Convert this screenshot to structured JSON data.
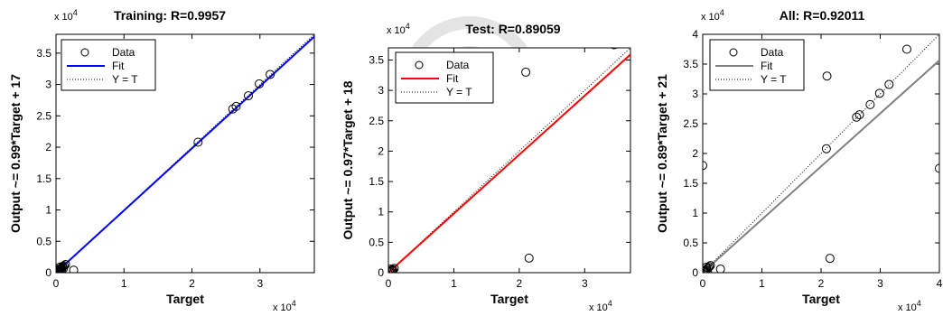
{
  "chart_data": [
    {
      "type": "scatter",
      "title": "Training: R=0.9957",
      "xlabel": "Target",
      "ylabel": "Output ~= 0.99*Target + 17",
      "exponent_label": "x 10",
      "exponent_power": "4",
      "xlim": [
        0,
        38000
      ],
      "ylim": [
        0,
        38000
      ],
      "xticks": [
        0,
        10000,
        20000,
        30000
      ],
      "xtick_labels": [
        "0",
        "1",
        "2",
        "3"
      ],
      "yticks": [
        0,
        5000,
        10000,
        15000,
        20000,
        25000,
        30000,
        35000
      ],
      "ytick_labels": [
        "0",
        "0.5",
        "1",
        "1.5",
        "2",
        "2.5",
        "3",
        "3.5"
      ],
      "fit": {
        "slope": 0.99,
        "intercept": 17,
        "color": "#0000ff"
      },
      "legend": [
        "Data",
        "Fit",
        "Y = T"
      ],
      "legend_placement": "top-left",
      "series": [
        {
          "name": "Data",
          "x": [
            100,
            200,
            300,
            400,
            500,
            600,
            700,
            800,
            900,
            1000,
            1200,
            1400,
            300,
            500,
            800,
            1100,
            600,
            2600,
            20900,
            26000,
            26500,
            28300,
            29900,
            31500
          ],
          "y": [
            100,
            150,
            350,
            300,
            450,
            500,
            650,
            700,
            900,
            1000,
            1100,
            1300,
            500,
            200,
            400,
            700,
            900,
            400,
            20800,
            26100,
            26500,
            28200,
            30100,
            31600
          ]
        }
      ]
    },
    {
      "type": "scatter",
      "title": "Test: R=0.89059",
      "xlabel": "Target",
      "ylabel": "Output ~= 0.97*Target + 18",
      "exponent_label": "x 10",
      "exponent_power": "4",
      "xlim": [
        0,
        37000
      ],
      "ylim": [
        0,
        37000
      ],
      "xticks": [
        0,
        10000,
        20000,
        30000
      ],
      "xtick_labels": [
        "0",
        "1",
        "2",
        "3"
      ],
      "yticks": [
        0,
        5000,
        10000,
        15000,
        20000,
        25000,
        30000,
        35000
      ],
      "ytick_labels": [
        "0",
        "0.5",
        "1",
        "1.5",
        "2",
        "2.5",
        "3",
        "3.5"
      ],
      "fit": {
        "slope": 0.97,
        "intercept": 18,
        "color": "#ff0000"
      },
      "legend": [
        "Data",
        "Fit",
        "Y = T"
      ],
      "legend_placement": "top-left",
      "series": [
        {
          "name": "Data",
          "x": [
            100,
            200,
            300,
            500,
            700,
            900,
            400,
            600,
            21000,
            21500,
            34500
          ],
          "y": [
            100,
            300,
            200,
            400,
            500,
            700,
            600,
            300,
            33000,
            2400,
            37500
          ]
        }
      ]
    },
    {
      "type": "scatter",
      "title": "All: R=0.92011",
      "xlabel": "Target",
      "ylabel": "Output ~= 0.89*Target + 21",
      "exponent_label": "x 10",
      "exponent_power": "4",
      "xlim": [
        0,
        40000
      ],
      "ylim": [
        0,
        40000
      ],
      "xticks": [
        0,
        10000,
        20000,
        30000,
        40000
      ],
      "xtick_labels": [
        "0",
        "1",
        "2",
        "3",
        "4"
      ],
      "yticks": [
        0,
        5000,
        10000,
        15000,
        20000,
        25000,
        30000,
        35000,
        40000
      ],
      "ytick_labels": [
        "0",
        "0.5",
        "1",
        "1.5",
        "2",
        "2.5",
        "3",
        "3.5",
        "4"
      ],
      "fit": {
        "slope": 0.89,
        "intercept": 21,
        "color": "#808080"
      },
      "legend": [
        "Data",
        "Fit",
        "Y = T"
      ],
      "legend_placement": "top-left",
      "series": [
        {
          "name": "Data",
          "x": [
            100,
            200,
            300,
            400,
            500,
            700,
            900,
            1100,
            1300,
            600,
            800,
            3000,
            0,
            20900,
            21000,
            21500,
            26000,
            26500,
            28300,
            29900,
            31500,
            34500,
            40000
          ],
          "y": [
            100,
            200,
            300,
            250,
            450,
            600,
            800,
            1000,
            1200,
            900,
            300,
            600,
            18000,
            20800,
            33000,
            2400,
            26100,
            26500,
            28200,
            30100,
            31600,
            37500,
            17500
          ]
        }
      ]
    }
  ]
}
